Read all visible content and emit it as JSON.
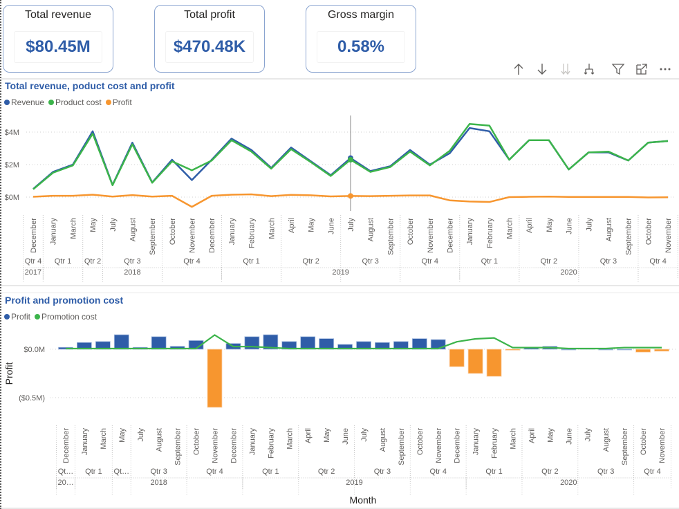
{
  "kpis": [
    {
      "title": "Total revenue",
      "value": "$80.45M"
    },
    {
      "title": "Total profit",
      "value": "$470.48K"
    },
    {
      "title": "Gross margin",
      "value": "0.58%"
    }
  ],
  "toolbar": {
    "icons": [
      "drill-up-icon",
      "drill-down-icon",
      "expand-next-level-icon",
      "expand-hierarchy-icon",
      "filter-icon",
      "focus-mode-icon",
      "more-options-icon"
    ]
  },
  "colors": {
    "revenue": "#2f5da8",
    "product_cost": "#3cb44b",
    "profit": "#f7962f",
    "profit_positive": "#2f5da8",
    "profit_negative": "#f7962f",
    "promotion": "#3cb44b",
    "title": "#2f5da8"
  },
  "chart_data": [
    {
      "type": "line",
      "title": "Total revenue, poduct cost and profit",
      "legend": [
        "Revenue",
        "Product cost",
        "Profit"
      ],
      "legend_position": "top-left",
      "ylim": [
        -1,
        5
      ],
      "yticks": [
        "$0M",
        "$2M",
        "$4M"
      ],
      "ytick_values": [
        0,
        2,
        4
      ],
      "grid": true,
      "x": [
        "December",
        "January",
        "March",
        "May",
        "July",
        "August",
        "September",
        "October",
        "November",
        "December",
        "January",
        "February",
        "March",
        "April",
        "May",
        "June",
        "July",
        "August",
        "September",
        "October",
        "November",
        "December",
        "January",
        "February",
        "March",
        "April",
        "May",
        "June",
        "July",
        "August",
        "September",
        "October",
        "November"
      ],
      "quarters": [
        {
          "label": "Qtr 4",
          "count": 1
        },
        {
          "label": "Qtr 1",
          "count": 2
        },
        {
          "label": "Qtr 2",
          "count": 1
        },
        {
          "label": "Qtr 3",
          "count": 3
        },
        {
          "label": "Qtr 4",
          "count": 3
        },
        {
          "label": "Qtr 1",
          "count": 3
        },
        {
          "label": "Qtr 2",
          "count": 3
        },
        {
          "label": "Qtr 3",
          "count": 3
        },
        {
          "label": "Qtr 4",
          "count": 3
        },
        {
          "label": "Qtr 1",
          "count": 3
        },
        {
          "label": "Qtr 2",
          "count": 3
        },
        {
          "label": "Qtr 3",
          "count": 3
        },
        {
          "label": "Qtr 4",
          "count": 2
        }
      ],
      "years": [
        {
          "label": "2017",
          "count": 1
        },
        {
          "label": "2018",
          "count": 9
        },
        {
          "label": "2019",
          "count": 12
        },
        {
          "label": "2020",
          "count": 11
        }
      ],
      "highlight_index": 16,
      "series": [
        {
          "name": "Revenue",
          "values": [
            0.5,
            1.55,
            2.0,
            4.05,
            0.75,
            3.35,
            0.9,
            2.3,
            1.05,
            2.3,
            3.6,
            2.9,
            1.8,
            3.05,
            2.2,
            1.35,
            2.4,
            1.6,
            1.9,
            2.9,
            2.0,
            2.7,
            4.25,
            4.05,
            2.3,
            3.5,
            3.5,
            1.7,
            2.75,
            2.75,
            2.25,
            3.35,
            3.45
          ]
        },
        {
          "name": "Product cost",
          "values": [
            0.48,
            1.5,
            1.95,
            3.9,
            0.73,
            3.25,
            0.88,
            2.2,
            1.65,
            2.25,
            3.5,
            2.8,
            1.75,
            2.95,
            2.15,
            1.3,
            2.3,
            1.55,
            1.85,
            2.8,
            1.95,
            2.85,
            4.5,
            4.4,
            2.3,
            3.5,
            3.5,
            1.7,
            2.75,
            2.8,
            2.25,
            3.35,
            3.45
          ]
        },
        {
          "name": "Profit",
          "values": [
            0.02,
            0.08,
            0.08,
            0.15,
            0.03,
            0.12,
            0.03,
            0.08,
            -0.6,
            0.08,
            0.15,
            0.17,
            0.06,
            0.14,
            0.11,
            0.04,
            0.07,
            0.06,
            0.08,
            0.1,
            0.1,
            -0.2,
            -0.27,
            -0.3,
            0.0,
            0.02,
            0.03,
            0.01,
            0.01,
            0.01,
            0.01,
            -0.02,
            -0.01
          ]
        }
      ]
    },
    {
      "type": "bar",
      "title": "Profit and promotion cost",
      "legend": [
        "Profit",
        "Promotion cost"
      ],
      "legend_position": "top-left",
      "ylabel": "Profit",
      "xlabel": "Month",
      "ylim": [
        -0.7,
        0.2
      ],
      "yticks": [
        "$0.0M",
        "($0.5M)"
      ],
      "ytick_values": [
        0,
        -0.5
      ],
      "grid": true,
      "x": [
        "December",
        "January",
        "March",
        "May",
        "July",
        "August",
        "September",
        "October",
        "November",
        "December",
        "January",
        "February",
        "March",
        "April",
        "May",
        "June",
        "July",
        "August",
        "September",
        "October",
        "November",
        "December",
        "January",
        "February",
        "March",
        "April",
        "May",
        "June",
        "July",
        "August",
        "September",
        "October",
        "November"
      ],
      "quarters": [
        {
          "label": "Qt…",
          "count": 1
        },
        {
          "label": "Qtr 1",
          "count": 2
        },
        {
          "label": "Qt…",
          "count": 1
        },
        {
          "label": "Qtr 3",
          "count": 3
        },
        {
          "label": "Qtr 4",
          "count": 3
        },
        {
          "label": "Qtr 1",
          "count": 3
        },
        {
          "label": "Qtr 2",
          "count": 3
        },
        {
          "label": "Qtr 3",
          "count": 3
        },
        {
          "label": "Qtr 4",
          "count": 3
        },
        {
          "label": "Qtr 1",
          "count": 3
        },
        {
          "label": "Qtr 2",
          "count": 3
        },
        {
          "label": "Qtr 3",
          "count": 3
        },
        {
          "label": "Qtr 4",
          "count": 2
        }
      ],
      "years": [
        {
          "label": "20…",
          "count": 1
        },
        {
          "label": "2018",
          "count": 9
        },
        {
          "label": "2019",
          "count": 12
        },
        {
          "label": "2020",
          "count": 11
        }
      ],
      "series": [
        {
          "name": "Profit",
          "type": "bar",
          "values": [
            0.02,
            0.07,
            0.08,
            0.15,
            0.02,
            0.13,
            0.03,
            0.09,
            -0.6,
            0.06,
            0.13,
            0.15,
            0.08,
            0.13,
            0.11,
            0.05,
            0.08,
            0.07,
            0.08,
            0.11,
            0.1,
            -0.18,
            -0.25,
            -0.28,
            -0.01,
            0.02,
            0.03,
            0.0,
            0.01,
            0.0,
            0.0,
            -0.03,
            -0.02
          ]
        },
        {
          "name": "Promotion cost",
          "type": "line",
          "values": [
            0.0,
            0.0,
            0.0,
            0.0,
            0.0,
            0.0,
            0.0,
            0.0,
            0.14,
            0.02,
            0.02,
            0.01,
            0.0,
            0.0,
            0.0,
            0.0,
            0.0,
            0.0,
            0.0,
            0.0,
            0.0,
            0.07,
            0.1,
            0.11,
            0.01,
            0.01,
            0.01,
            0.0,
            0.0,
            0.0,
            0.01,
            0.01,
            0.01
          ]
        }
      ]
    }
  ]
}
